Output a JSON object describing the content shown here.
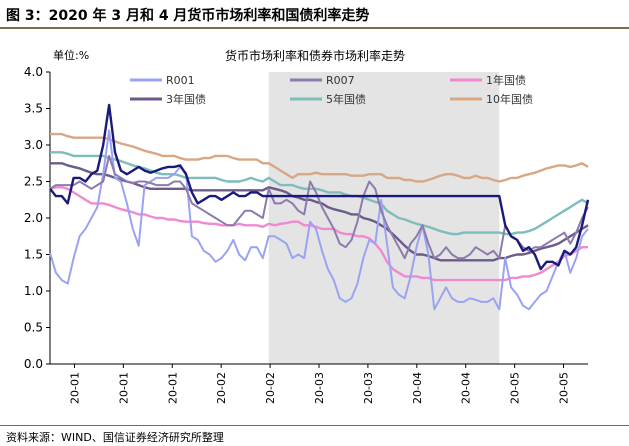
{
  "figure": {
    "title": "图 3：2020 年 3 月和 4 月货币市场利率和国债利率走势",
    "source": "资料来源：WIND、国信证券经济研究所整理"
  },
  "colors": {
    "R001": "#9aa3f2",
    "R007": "#8c7bac",
    "1年国债": "#f08ad0",
    "3年国债": "#6b5b8a",
    "5年国债": "#7fbcbc",
    "10年国债": "#d8a884",
    "R007_dark": "#1a1a7a",
    "shade": "#e4e4e4",
    "title_rule": "#7f6b4b"
  },
  "chart_data": {
    "type": "line",
    "title": "货币市场利率和债券市场利率走势",
    "unit_label": "单位:%",
    "ylim": [
      0.0,
      4.0
    ],
    "yticks": [
      "0.0",
      "0.5",
      "1.0",
      "1.5",
      "2.0",
      "2.5",
      "3.0",
      "3.5",
      "4.0"
    ],
    "xtick_labels": [
      "20-01",
      "20-01",
      "20-01",
      "20-02",
      "20-02",
      "20-03",
      "20-03",
      "20-04",
      "20-04",
      "20-05",
      "20-05"
    ],
    "grid": false,
    "legend": "top, inside plot, three columns",
    "shaded_region": {
      "from_index": 37,
      "to_index": 76,
      "note": "March–April 2020"
    },
    "legend_entries": [
      "R001",
      "R007",
      "1年国债",
      "3年国债",
      "5年国债",
      "10年国债"
    ],
    "series": [
      {
        "name": "R001",
        "values": [
          1.52,
          1.25,
          1.15,
          1.1,
          1.45,
          1.75,
          1.85,
          2.0,
          2.15,
          2.6,
          3.2,
          2.55,
          2.5,
          2.2,
          1.85,
          1.62,
          2.45,
          2.5,
          2.55,
          2.55,
          2.55,
          2.6,
          2.7,
          2.62,
          1.75,
          1.7,
          1.55,
          1.5,
          1.4,
          1.45,
          1.55,
          1.7,
          1.5,
          1.42,
          1.6,
          1.6,
          1.45,
          1.75,
          1.75,
          1.7,
          1.65,
          1.45,
          1.5,
          1.45,
          1.95,
          1.85,
          1.55,
          1.3,
          1.15,
          0.9,
          0.85,
          0.9,
          1.1,
          1.45,
          1.7,
          1.65,
          2.25,
          1.65,
          1.05,
          0.95,
          0.9,
          1.2,
          1.6,
          1.9,
          1.5,
          0.75,
          0.9,
          1.05,
          0.9,
          0.85,
          0.85,
          0.9,
          0.88,
          0.85,
          0.85,
          0.9,
          0.75,
          1.45,
          1.05,
          0.95,
          0.8,
          0.75,
          0.85,
          0.95,
          1.0,
          1.2,
          1.4,
          1.55,
          1.25,
          1.45,
          1.75,
          1.85
        ]
      },
      {
        "name": "R007",
        "values": [
          2.4,
          2.45,
          2.45,
          2.45,
          2.45,
          2.5,
          2.45,
          2.4,
          2.45,
          2.5,
          2.85,
          2.6,
          2.55,
          2.5,
          2.48,
          2.5,
          2.5,
          2.48,
          2.45,
          2.45,
          2.45,
          2.5,
          2.5,
          2.4,
          2.2,
          2.15,
          2.1,
          2.05,
          2.0,
          1.95,
          1.9,
          1.9,
          2.0,
          2.1,
          2.1,
          2.05,
          2.0,
          2.4,
          2.2,
          2.2,
          2.25,
          2.2,
          2.1,
          2.05,
          2.5,
          2.35,
          2.15,
          2.0,
          1.85,
          1.65,
          1.6,
          1.7,
          1.95,
          2.3,
          2.5,
          2.4,
          2.1,
          1.9,
          1.75,
          1.6,
          1.45,
          1.65,
          1.75,
          1.9,
          1.65,
          1.45,
          1.5,
          1.6,
          1.5,
          1.45,
          1.45,
          1.5,
          1.6,
          1.55,
          1.5,
          1.55,
          1.45,
          1.9,
          1.75,
          1.7,
          1.6,
          1.55,
          1.6,
          1.6,
          1.65,
          1.7,
          1.75,
          1.8,
          1.65,
          1.8,
          2.0,
          2.15
        ]
      },
      {
        "name": "R007_dark",
        "values": [
          2.4,
          2.3,
          2.3,
          2.2,
          2.55,
          2.55,
          2.5,
          2.6,
          2.65,
          3.0,
          3.55,
          2.9,
          2.65,
          2.6,
          2.65,
          2.7,
          2.65,
          2.62,
          2.65,
          2.68,
          2.7,
          2.7,
          2.72,
          2.6,
          2.35,
          2.2,
          2.25,
          2.3,
          2.3,
          2.25,
          2.3,
          2.35,
          2.3,
          2.3,
          2.35,
          2.35,
          2.3,
          2.3,
          2.3,
          2.3,
          2.3,
          2.3,
          2.3,
          2.3,
          2.3,
          2.3,
          2.3,
          2.3,
          2.3,
          2.3,
          2.3,
          2.3,
          2.3,
          2.3,
          2.3,
          2.3,
          2.3,
          2.3,
          2.3,
          2.3,
          2.3,
          2.3,
          2.3,
          2.3,
          2.3,
          2.3,
          2.3,
          2.3,
          2.3,
          2.3,
          2.3,
          2.3,
          2.3,
          2.3,
          2.3,
          2.3,
          2.3,
          1.9,
          1.75,
          1.7,
          1.55,
          1.6,
          1.5,
          1.3,
          1.4,
          1.4,
          1.35,
          1.55,
          1.5,
          1.6,
          1.9,
          2.25
        ]
      },
      {
        "name": "1年国债",
        "values": [
          2.4,
          2.42,
          2.42,
          2.4,
          2.35,
          2.3,
          2.25,
          2.2,
          2.2,
          2.2,
          2.18,
          2.15,
          2.12,
          2.1,
          2.08,
          2.05,
          2.05,
          2.02,
          2.0,
          2.0,
          1.98,
          1.98,
          1.96,
          1.95,
          1.95,
          1.95,
          1.93,
          1.92,
          1.92,
          1.9,
          1.9,
          1.9,
          1.92,
          1.9,
          1.9,
          1.9,
          1.88,
          1.92,
          1.9,
          1.92,
          1.93,
          1.95,
          1.95,
          1.9,
          1.9,
          1.88,
          1.85,
          1.85,
          1.85,
          1.8,
          1.78,
          1.78,
          1.75,
          1.75,
          1.72,
          1.65,
          1.55,
          1.4,
          1.3,
          1.25,
          1.2,
          1.2,
          1.2,
          1.18,
          1.18,
          1.15,
          1.15,
          1.15,
          1.15,
          1.15,
          1.15,
          1.15,
          1.15,
          1.15,
          1.15,
          1.15,
          1.15,
          1.15,
          1.18,
          1.18,
          1.2,
          1.2,
          1.22,
          1.25,
          1.3,
          1.35,
          1.4,
          1.48,
          1.5,
          1.55,
          1.6,
          1.6
        ]
      },
      {
        "name": "3年国债",
        "values": [
          2.75,
          2.75,
          2.75,
          2.72,
          2.7,
          2.68,
          2.65,
          2.62,
          2.6,
          2.6,
          2.58,
          2.55,
          2.52,
          2.5,
          2.48,
          2.45,
          2.42,
          2.4,
          2.4,
          2.4,
          2.4,
          2.4,
          2.4,
          2.4,
          2.38,
          2.38,
          2.38,
          2.38,
          2.38,
          2.38,
          2.38,
          2.38,
          2.38,
          2.38,
          2.38,
          2.38,
          2.38,
          2.42,
          2.4,
          2.38,
          2.35,
          2.3,
          2.28,
          2.25,
          2.25,
          2.22,
          2.2,
          2.15,
          2.12,
          2.1,
          2.08,
          2.05,
          2.05,
          2.0,
          1.98,
          1.95,
          1.9,
          1.85,
          1.78,
          1.7,
          1.62,
          1.55,
          1.5,
          1.5,
          1.48,
          1.45,
          1.42,
          1.42,
          1.42,
          1.42,
          1.42,
          1.42,
          1.42,
          1.42,
          1.42,
          1.42,
          1.45,
          1.45,
          1.48,
          1.5,
          1.5,
          1.52,
          1.55,
          1.58,
          1.6,
          1.62,
          1.65,
          1.7,
          1.75,
          1.8,
          1.85,
          1.9
        ]
      },
      {
        "name": "5年国债",
        "values": [
          2.9,
          2.9,
          2.9,
          2.88,
          2.85,
          2.85,
          2.85,
          2.85,
          2.85,
          2.85,
          2.82,
          2.8,
          2.78,
          2.75,
          2.72,
          2.7,
          2.68,
          2.65,
          2.62,
          2.6,
          2.6,
          2.6,
          2.58,
          2.55,
          2.55,
          2.55,
          2.55,
          2.55,
          2.55,
          2.52,
          2.5,
          2.5,
          2.5,
          2.52,
          2.55,
          2.52,
          2.5,
          2.55,
          2.5,
          2.45,
          2.45,
          2.45,
          2.42,
          2.4,
          2.4,
          2.4,
          2.38,
          2.35,
          2.35,
          2.35,
          2.32,
          2.3,
          2.3,
          2.28,
          2.25,
          2.22,
          2.2,
          2.1,
          2.05,
          2.0,
          1.98,
          1.95,
          1.92,
          1.9,
          1.88,
          1.85,
          1.82,
          1.8,
          1.78,
          1.78,
          1.8,
          1.8,
          1.8,
          1.8,
          1.8,
          1.8,
          1.8,
          1.78,
          1.78,
          1.8,
          1.8,
          1.82,
          1.85,
          1.9,
          1.95,
          2.0,
          2.05,
          2.1,
          2.15,
          2.2,
          2.25,
          2.2
        ]
      },
      {
        "name": "10年国债",
        "values": [
          3.15,
          3.15,
          3.15,
          3.12,
          3.1,
          3.1,
          3.1,
          3.1,
          3.1,
          3.1,
          3.08,
          3.05,
          3.02,
          3.0,
          2.98,
          2.95,
          2.92,
          2.9,
          2.88,
          2.85,
          2.85,
          2.85,
          2.82,
          2.8,
          2.8,
          2.8,
          2.82,
          2.82,
          2.85,
          2.85,
          2.85,
          2.82,
          2.8,
          2.8,
          2.8,
          2.8,
          2.75,
          2.75,
          2.7,
          2.65,
          2.6,
          2.55,
          2.6,
          2.6,
          2.6,
          2.62,
          2.6,
          2.6,
          2.6,
          2.6,
          2.6,
          2.58,
          2.58,
          2.58,
          2.6,
          2.6,
          2.6,
          2.55,
          2.55,
          2.55,
          2.52,
          2.52,
          2.5,
          2.5,
          2.52,
          2.55,
          2.58,
          2.6,
          2.6,
          2.58,
          2.55,
          2.55,
          2.58,
          2.55,
          2.55,
          2.52,
          2.5,
          2.52,
          2.55,
          2.55,
          2.58,
          2.6,
          2.62,
          2.65,
          2.68,
          2.7,
          2.72,
          2.72,
          2.7,
          2.72,
          2.75,
          2.7
        ]
      }
    ]
  }
}
